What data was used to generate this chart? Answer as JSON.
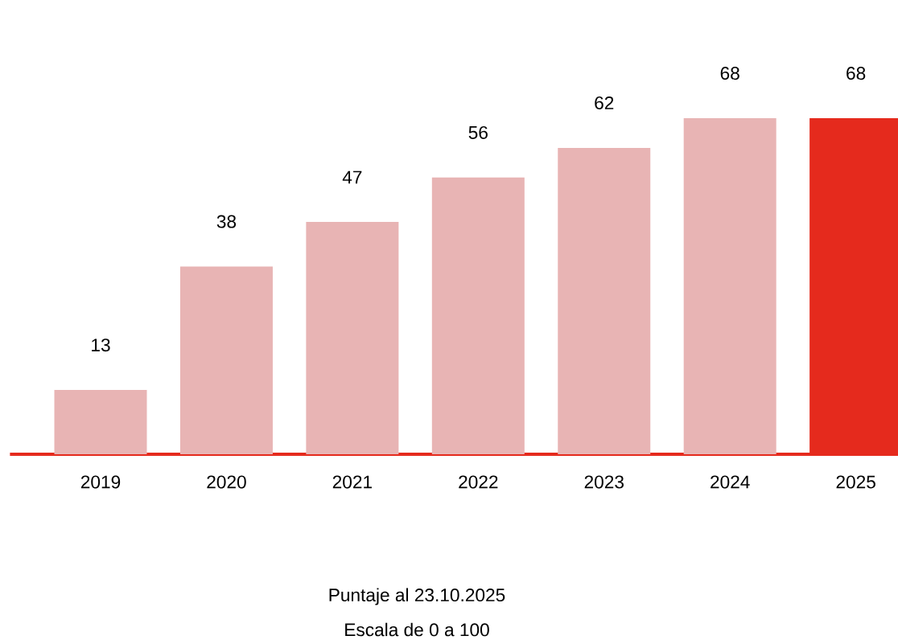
{
  "chart_data": {
    "type": "bar",
    "categories": [
      "2019",
      "2020",
      "2021",
      "2022",
      "2023",
      "2024",
      "2025"
    ],
    "values": [
      13,
      38,
      47,
      56,
      62,
      68,
      68
    ],
    "colors": [
      "#e8b4b4",
      "#e8b4b4",
      "#e8b4b4",
      "#e8b4b4",
      "#e8b4b4",
      "#e8b4b4",
      "#e52a1d"
    ],
    "data_labels": true,
    "annotations": [
      "Puntaje al 23.10.2025",
      "Escala de 0 a 100"
    ]
  }
}
